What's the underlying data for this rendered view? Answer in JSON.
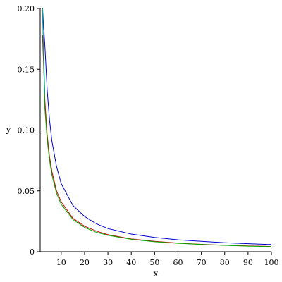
{
  "chart_data": {
    "type": "line",
    "title": "",
    "xlabel": "x",
    "ylabel": "y",
    "xlim": [
      1,
      100
    ],
    "ylim": [
      0,
      0.2
    ],
    "xticks": [
      10,
      20,
      30,
      40,
      50,
      60,
      70,
      80,
      90,
      100
    ],
    "yticks": [
      0,
      0.05,
      0.1,
      0.15,
      0.2
    ],
    "ytick_labels": [
      "0",
      "0.05",
      "0.10",
      "0.15",
      "0.20"
    ],
    "grid": false,
    "series": [
      {
        "color": "#0000cc",
        "x": [
          2,
          3,
          4,
          5,
          6,
          8,
          10,
          15,
          20,
          25,
          30,
          40,
          50,
          60,
          70,
          80,
          90,
          100
        ],
        "y": [
          0.2,
          0.17,
          0.133,
          0.108,
          0.091,
          0.07,
          0.056,
          0.038,
          0.029,
          0.023,
          0.019,
          0.0145,
          0.0117,
          0.0098,
          0.0085,
          0.0074,
          0.0066,
          0.0059
        ]
      },
      {
        "color": "#cc0000",
        "x": [
          2,
          3,
          4,
          5,
          6,
          8,
          10,
          15,
          20,
          25,
          30,
          40,
          50,
          60,
          70,
          80,
          90,
          100
        ],
        "y": [
          0.178,
          0.125,
          0.096,
          0.078,
          0.066,
          0.05,
          0.041,
          0.0275,
          0.021,
          0.017,
          0.014,
          0.0105,
          0.0085,
          0.0071,
          0.0061,
          0.0053,
          0.0048,
          0.0043
        ]
      },
      {
        "color": "#00aa00",
        "x": [
          2,
          3,
          4,
          5,
          6,
          8,
          10,
          15,
          20,
          25,
          30,
          40,
          50,
          60,
          70,
          80,
          90,
          100
        ],
        "y": [
          0.2,
          0.118,
          0.092,
          0.075,
          0.063,
          0.048,
          0.039,
          0.0265,
          0.02,
          0.016,
          0.0135,
          0.0102,
          0.0082,
          0.0069,
          0.0059,
          0.0052,
          0.0046,
          0.0042
        ]
      },
      {
        "color": "#009999",
        "x": [
          2,
          2.5,
          3
        ],
        "y": [
          0.2,
          0.16,
          0.13
        ]
      }
    ]
  }
}
